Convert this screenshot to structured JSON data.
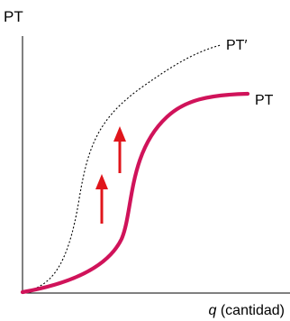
{
  "chart_data": {
    "type": "line",
    "ylabel": "PT",
    "xlabel_var": "q",
    "xlabel_rest": " (cantidad)",
    "series": [
      {
        "name": "PT",
        "color": "#d0135a",
        "style": "solid"
      },
      {
        "name": "PT′",
        "color": "#000000",
        "style": "dotted"
      }
    ],
    "annotations": [
      {
        "type": "arrow",
        "direction": "up",
        "color": "#e0151b"
      },
      {
        "type": "arrow",
        "direction": "up",
        "color": "#e0151b"
      }
    ],
    "grid": false,
    "legend": "none"
  }
}
